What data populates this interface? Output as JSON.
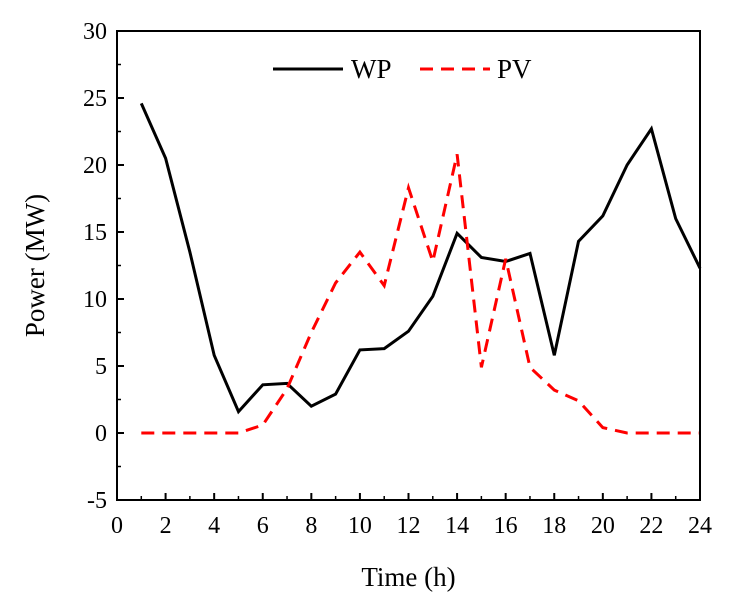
{
  "chart_data": {
    "type": "line",
    "title": "",
    "xlabel": "Time (h)",
    "ylabel": "Power (MW)",
    "xlim": [
      0,
      24
    ],
    "ylim": [
      -5,
      30
    ],
    "xticks": [
      "0",
      "2",
      "4",
      "6",
      "8",
      "10",
      "12",
      "14",
      "16",
      "18",
      "20",
      "22",
      "24"
    ],
    "yticks": [
      "-5",
      "0",
      "5",
      "10",
      "15",
      "20",
      "25",
      "30"
    ],
    "grid": false,
    "legend_position": "top-center",
    "x": [
      1,
      2,
      3,
      4,
      5,
      6,
      7,
      8,
      9,
      10,
      11,
      12,
      13,
      14,
      15,
      16,
      17,
      18,
      19,
      20,
      21,
      22,
      23,
      24
    ],
    "series": [
      {
        "name": "WP",
        "color": "#000000",
        "style": "solid",
        "values": [
          24.6,
          20.5,
          13.5,
          5.8,
          1.6,
          3.6,
          3.7,
          2.0,
          2.9,
          6.2,
          6.3,
          7.6,
          10.2,
          14.9,
          13.1,
          12.8,
          13.4,
          5.8,
          14.3,
          16.2,
          20.0,
          22.7,
          16.0,
          12.3
        ]
      },
      {
        "name": "PV",
        "color": "#ff0000",
        "style": "dashed",
        "values": [
          0,
          0,
          0,
          0,
          0,
          0.6,
          3.3,
          7.5,
          11.2,
          13.5,
          11.0,
          18.3,
          12.8,
          20.8,
          4.9,
          13.0,
          4.9,
          3.2,
          2.4,
          0.4,
          0,
          0,
          0,
          0
        ]
      }
    ]
  }
}
